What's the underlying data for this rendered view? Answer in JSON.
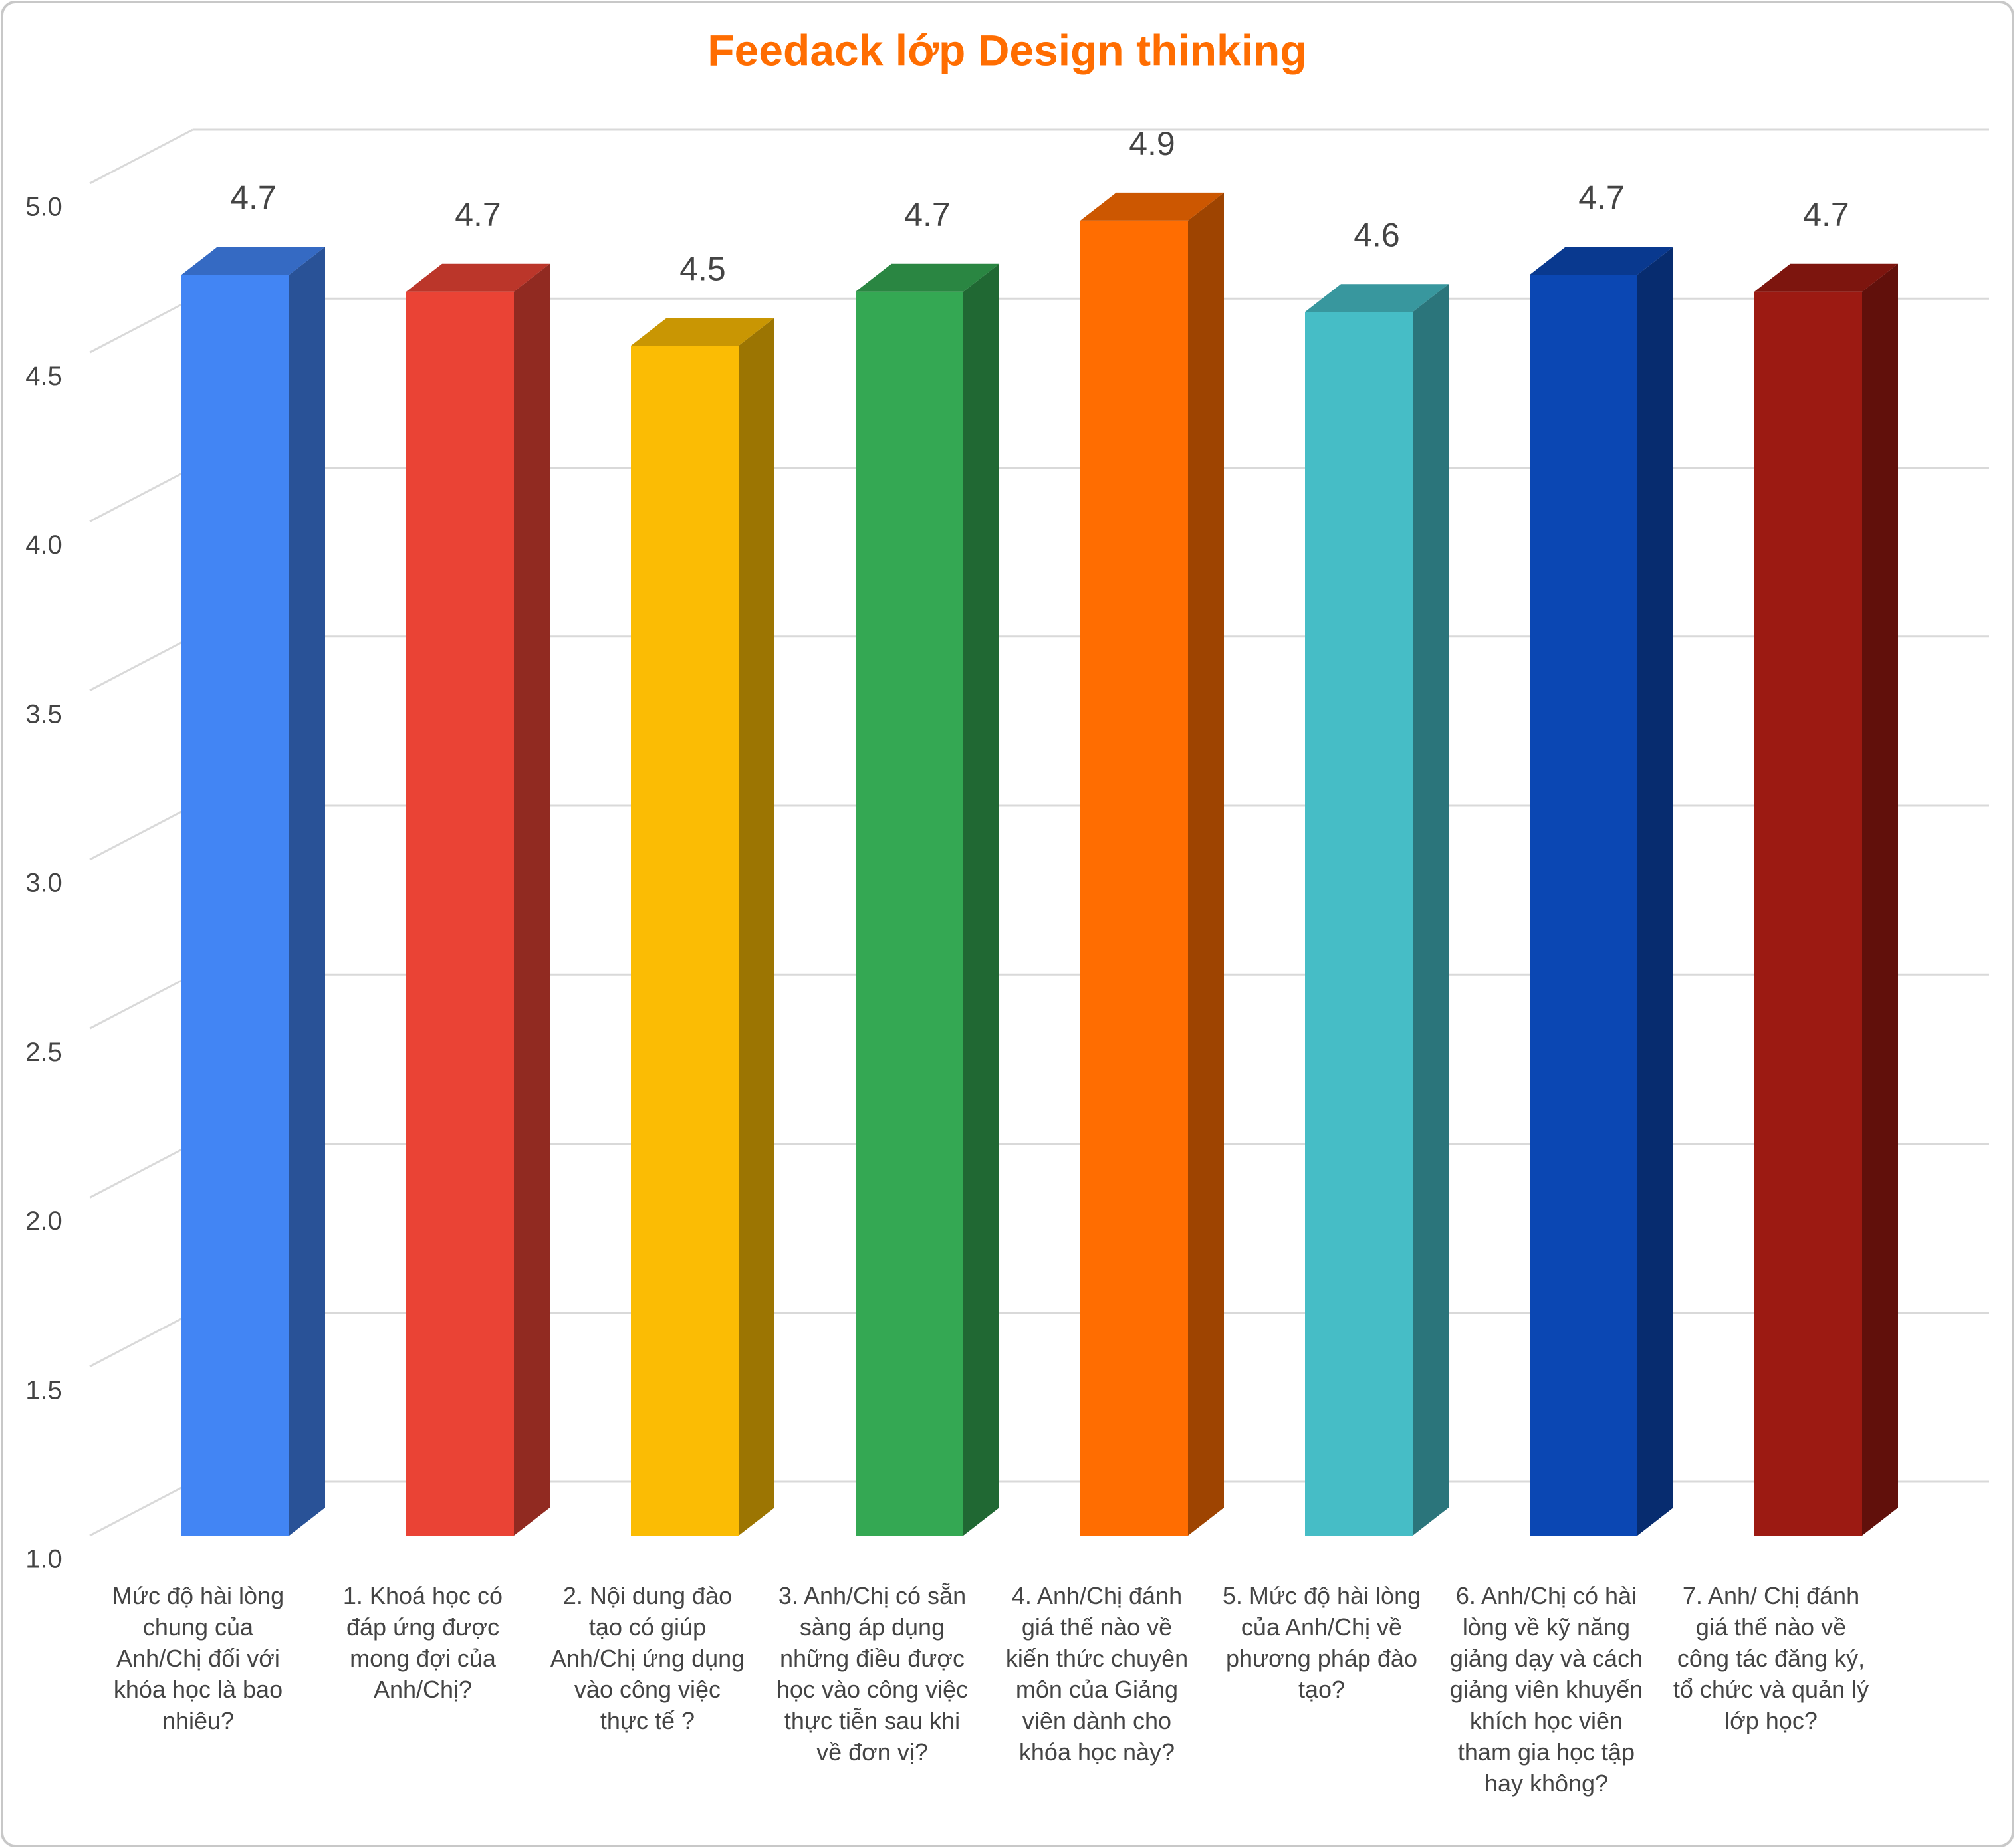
{
  "chart_data": {
    "type": "bar3d",
    "title": "Feedack lớp Design thinking",
    "categories": [
      "Mức độ hài lòng chung của Anh/Chị đối với khóa học là bao nhiêu?",
      "1. Khoá học có đáp ứng được mong đợi của Anh/Chị?",
      "2. Nội dung đào tạo có giúp Anh/Chị ứng dụng vào công việc thực tế ?",
      "3. Anh/Chị có sẵn sàng áp dụng những điều được học vào công việc thực tiễn sau khi về đơn vị?",
      "4. Anh/Chị đánh giá thế nào về kiến thức chuyên môn của Giảng viên dành cho khóa học này?",
      "5. Mức độ hài lòng của Anh/Chị về phương pháp đào tạo?",
      "6. Anh/Chị có hài lòng về kỹ năng giảng dạy và cách giảng viên khuyến khích học viên tham gia học tập hay không?",
      "7. Anh/ Chị đánh giá thế nào về công tác đăng ký, tổ chức và quản lý lớp học?"
    ],
    "values": [
      4.73,
      4.68,
      4.52,
      4.68,
      4.89,
      4.62,
      4.73,
      4.68
    ],
    "value_labels": [
      "4.7",
      "4.7",
      "4.5",
      "4.7",
      "4.9",
      "4.6",
      "4.7",
      "4.7"
    ],
    "colors": [
      "#4285f4",
      "#ea4335",
      "#fbbc04",
      "#34a853",
      "#ff6d01",
      "#46bdc6",
      "#0b47b3",
      "#9c1a12"
    ],
    "ylim": [
      1,
      5
    ],
    "yticks": [
      {
        "value": 1,
        "label": "1.0"
      },
      {
        "value": 1.5,
        "label": "1.5"
      },
      {
        "value": 2,
        "label": "2.0"
      },
      {
        "value": 2.5,
        "label": "2.5"
      },
      {
        "value": 3,
        "label": "3.0"
      },
      {
        "value": 3.5,
        "label": "3.5"
      },
      {
        "value": 4,
        "label": "4.0"
      },
      {
        "value": 4.5,
        "label": "4.5"
      },
      {
        "value": 5,
        "label": "5.0"
      }
    ],
    "grid": true
  }
}
